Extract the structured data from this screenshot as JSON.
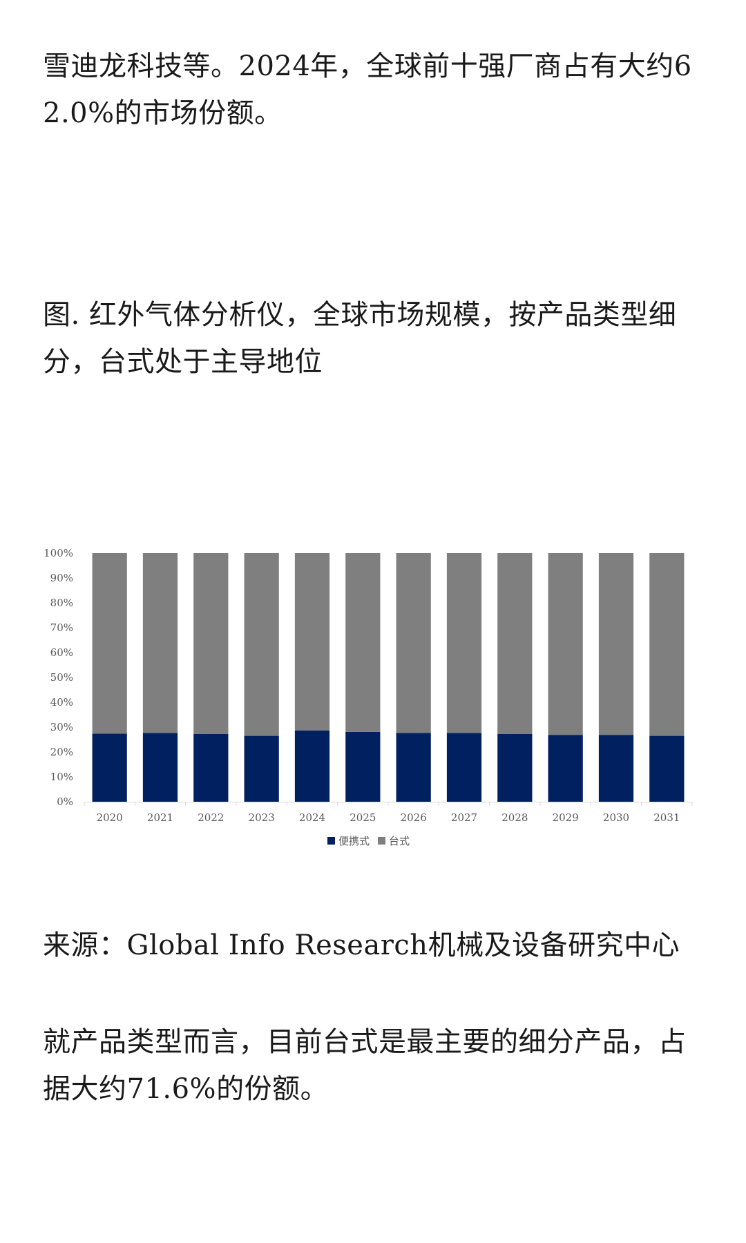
{
  "article": {
    "intro": "雪迪龙科技等。2024年，全球前十强厂商占有大约62.0%的市场份额。",
    "figure_title": "图. 红外气体分析仪，全球市场规模，按产品类型细分，台式处于主导地位",
    "source": "来源：Global Info Research机械及设备研究中心",
    "conclusion": "就产品类型而言，目前台式是最主要的细分产品，占据大约71.6%的份额。"
  },
  "chart_data": {
    "type": "bar",
    "stacked": true,
    "percent": true,
    "categories": [
      "2020",
      "2021",
      "2022",
      "2023",
      "2024",
      "2025",
      "2026",
      "2027",
      "2028",
      "2029",
      "2030",
      "2031"
    ],
    "series": [
      {
        "name": "便携式",
        "color": "#002060",
        "values": [
          27.4,
          27.7,
          27.3,
          26.5,
          28.7,
          28.1,
          27.7,
          27.7,
          27.3,
          26.9,
          26.9,
          26.5
        ]
      },
      {
        "name": "台式",
        "color": "#7f7f7f",
        "values": [
          72.6,
          72.3,
          72.7,
          73.5,
          71.3,
          71.9,
          72.3,
          72.3,
          72.7,
          73.1,
          73.1,
          73.5
        ]
      }
    ],
    "yticks": [
      "0%",
      "10%",
      "20%",
      "30%",
      "40%",
      "50%",
      "60%",
      "70%",
      "80%",
      "90%",
      "100%"
    ],
    "ylim": [
      0,
      100
    ],
    "grid": false,
    "legend": "bottom-center",
    "title": "",
    "xlabel": "",
    "ylabel": ""
  }
}
